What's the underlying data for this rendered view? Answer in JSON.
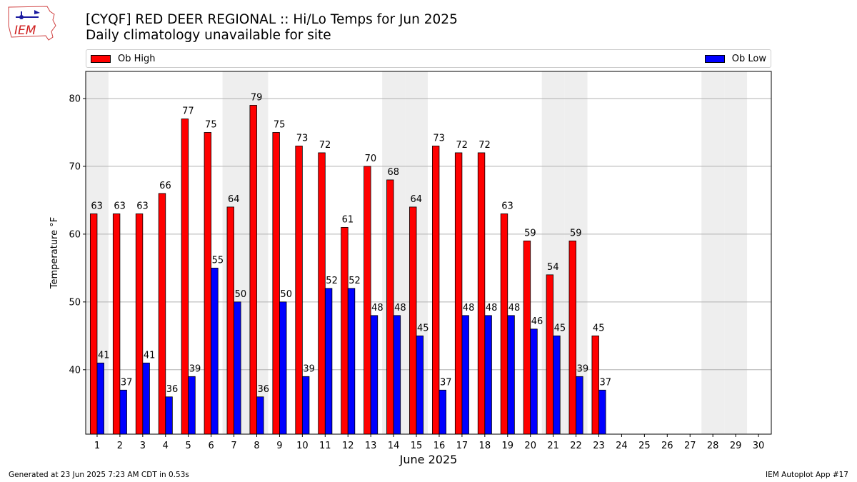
{
  "header": {
    "logo_text": "IEM",
    "title": "[CYQF] RED DEER REGIONAL :: Hi/Lo Temps for Jun 2025",
    "subtitle": "Daily climatology unavailable for site"
  },
  "legend": {
    "high_label": "Ob High",
    "low_label": "Ob Low",
    "high_color": "#ff0000",
    "low_color": "#0000ff"
  },
  "footer": {
    "generated": "Generated at 23 Jun 2025 7:23 AM CDT in 0.53s",
    "app": "IEM Autoplot App #17"
  },
  "chart_data": {
    "type": "bar",
    "title": "[CYQF] RED DEER REGIONAL :: Hi/Lo Temps for Jun 2025",
    "subtitle": "Daily climatology unavailable for site",
    "xlabel": "June 2025",
    "ylabel": "Temperature °F",
    "ylim": [
      30.5,
      84
    ],
    "yticks": [
      40,
      50,
      60,
      70,
      80
    ],
    "grid": "horizontal",
    "legend_position": "top",
    "categories": [
      "1",
      "2",
      "3",
      "4",
      "5",
      "6",
      "7",
      "8",
      "9",
      "10",
      "11",
      "12",
      "13",
      "14",
      "15",
      "16",
      "17",
      "18",
      "19",
      "20",
      "21",
      "22",
      "23",
      "24",
      "25",
      "26",
      "27",
      "28",
      "29",
      "30"
    ],
    "weekend_shading_days": [
      1,
      7,
      8,
      14,
      15,
      21,
      22,
      28,
      29
    ],
    "series": [
      {
        "name": "Ob High",
        "color": "#ff0000",
        "values": [
          63,
          63,
          63,
          66,
          77,
          75,
          64,
          79,
          75,
          73,
          72,
          61,
          70,
          68,
          64,
          73,
          72,
          72,
          63,
          59,
          54,
          59,
          45,
          null,
          null,
          null,
          null,
          null,
          null,
          null
        ]
      },
      {
        "name": "Ob Low",
        "color": "#0000ff",
        "values": [
          41,
          37,
          41,
          36,
          39,
          55,
          50,
          36,
          50,
          39,
          52,
          52,
          48,
          48,
          45,
          37,
          48,
          48,
          48,
          46,
          45,
          39,
          37,
          null,
          null,
          null,
          null,
          null,
          null,
          null
        ]
      }
    ]
  }
}
